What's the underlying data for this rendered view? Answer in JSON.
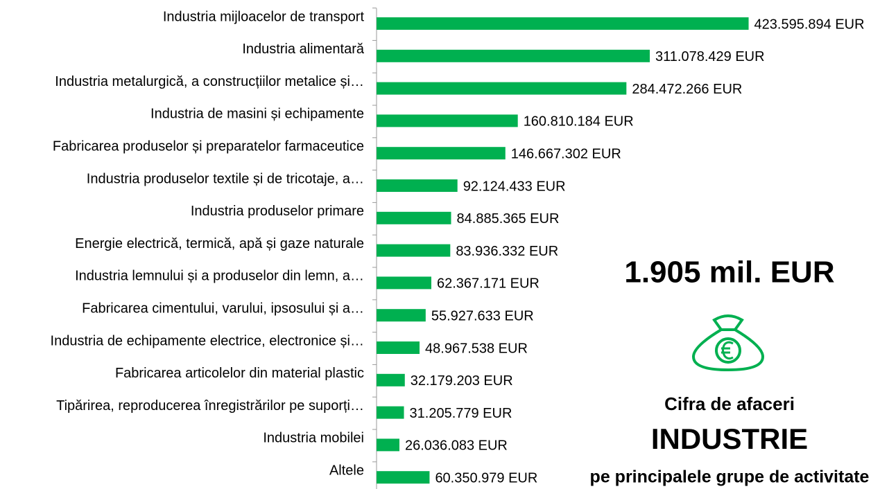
{
  "chart_data": {
    "type": "hbar",
    "categories": [
      "Industria mijloacelor de transport",
      "Industria alimentară",
      "Industria metalurgică, a construcțiilor metalice și…",
      "Industria de masini și echipamente",
      "Fabricarea produselor și preparatelor farmaceutice",
      "Industria produselor textile și de tricotaje, a…",
      "Industria produselor primare",
      "Energie electrică, termică, apă și gaze naturale",
      "Industria lemnului și a produselor din lemn, a…",
      "Fabricarea cimentului, varului, ipsosului și a…",
      "Industria de echipamente electrice, electronice și…",
      "Fabricarea articolelor din material plastic",
      "Tipărirea, reproducerea înregistrărilor pe suporți…",
      "Industria mobilei",
      "Altele"
    ],
    "values": [
      423595894,
      311078429,
      284472266,
      160810184,
      146667302,
      92124433,
      84885365,
      83936332,
      62367171,
      55927633,
      48967538,
      32179203,
      31205779,
      26036083,
      60350979
    ],
    "value_labels": [
      "423.595.894 EUR",
      "311.078.429 EUR",
      "284.472.266 EUR",
      "160.810.184 EUR",
      "146.667.302 EUR",
      "92.124.433 EUR",
      "84.885.365 EUR",
      "83.936.332 EUR",
      "62.367.171 EUR",
      "55.927.633 EUR",
      "48.967.538 EUR",
      "32.179.203 EUR",
      "31.205.779 EUR",
      "26.036.083 EUR",
      "60.350.979 EUR"
    ],
    "color": "#00b050",
    "xlim": [
      0,
      450000000
    ],
    "annotations": [
      "1.905 mil. EUR",
      "Cifra de afaceri",
      "INDUSTRIE",
      "pe principalele grupe de activitate"
    ]
  }
}
